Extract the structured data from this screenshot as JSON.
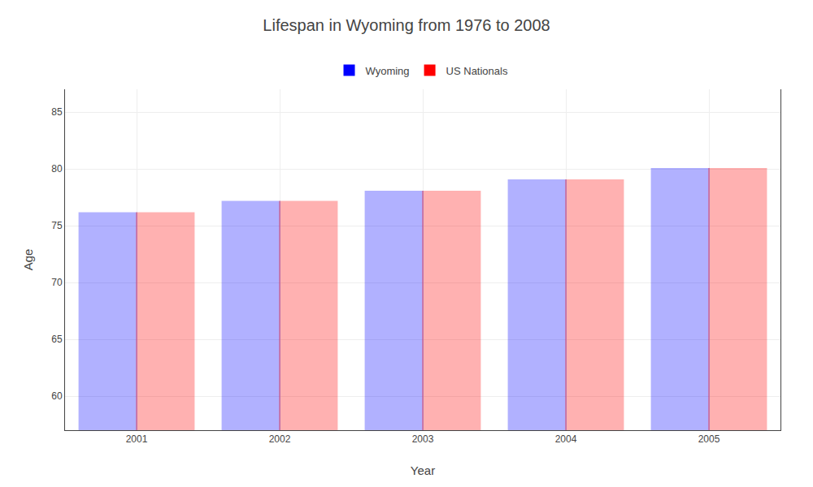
{
  "chart_data": {
    "type": "bar",
    "title": "Lifespan in Wyoming from 1976 to 2008",
    "xlabel": "Year",
    "ylabel": "Age",
    "categories": [
      "2001",
      "2002",
      "2003",
      "2004",
      "2005"
    ],
    "series": [
      {
        "name": "Wyoming",
        "color": "#0000ff",
        "values": [
          76.1,
          77.1,
          78.0,
          79.0,
          80.0
        ]
      },
      {
        "name": "US Nationals",
        "color": "#ff0000",
        "values": [
          76.1,
          77.1,
          78.0,
          79.0,
          80.0
        ]
      }
    ],
    "ylim": [
      57,
      87
    ],
    "yticks": [
      60,
      65,
      70,
      75,
      80,
      85
    ],
    "grid": true,
    "legend": "top"
  }
}
